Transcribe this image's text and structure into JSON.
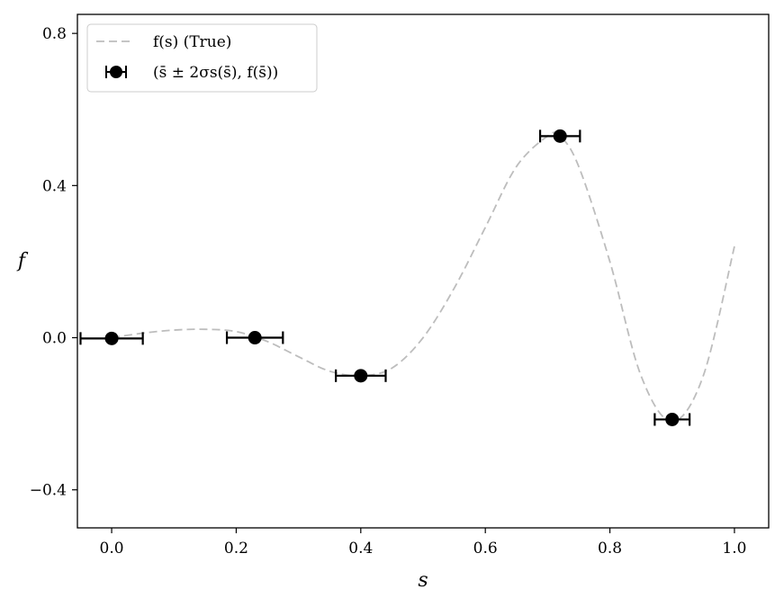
{
  "chart_data": {
    "type": "line",
    "xlabel": "s",
    "ylabel": "f",
    "xlim": [
      -0.055,
      1.055
    ],
    "ylim": [
      -0.5,
      0.85
    ],
    "x_ticks": [
      0.0,
      0.2,
      0.4,
      0.6,
      0.8,
      1.0
    ],
    "x_tick_labels": [
      "0.0",
      "0.2",
      "0.4",
      "0.6",
      "0.8",
      "1.0"
    ],
    "y_ticks": [
      -0.4,
      0.0,
      0.4,
      0.8
    ],
    "y_tick_labels": [
      "−0.4",
      "0.0",
      "0.4",
      "0.8"
    ],
    "grid": false,
    "legend_position": "top-left",
    "series": [
      {
        "name": "f(s) (True)",
        "style": "dashed-line",
        "color": "#bdbdbd",
        "x": [
          0.0,
          0.05,
          0.1,
          0.15,
          0.2,
          0.25,
          0.3,
          0.35,
          0.4,
          0.45,
          0.5,
          0.55,
          0.6,
          0.65,
          0.7,
          0.72,
          0.75,
          0.8,
          0.85,
          0.9,
          0.95,
          1.0
        ],
        "y": [
          0.0,
          0.012,
          0.02,
          0.022,
          0.016,
          -0.01,
          -0.05,
          -0.088,
          -0.1,
          -0.08,
          0.0,
          0.13,
          0.29,
          0.45,
          0.53,
          0.53,
          0.45,
          0.2,
          -0.1,
          -0.22,
          -0.1,
          0.24
        ]
      },
      {
        "name": "(s̄ ± 2σs(s̄), f(s̄))",
        "style": "errorbar-markers",
        "color": "#000000",
        "x": [
          0.0,
          0.23,
          0.4,
          0.72,
          0.9
        ],
        "y": [
          -0.002,
          0.0,
          -0.1,
          0.53,
          -0.215
        ],
        "xerr": [
          0.05,
          0.045,
          0.04,
          0.032,
          0.028
        ]
      }
    ],
    "legend": {
      "entry1_text": "f(s) (True)",
      "entry2_text": "(s̄ ± 2σs(s̄), f(s̄))"
    }
  }
}
